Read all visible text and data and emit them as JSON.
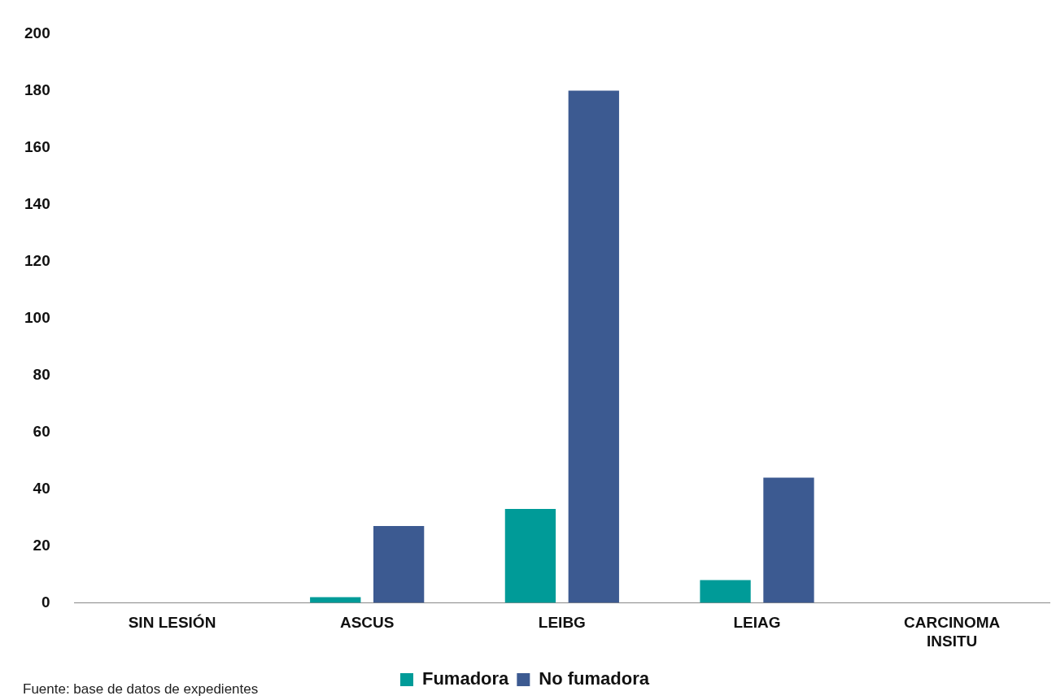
{
  "chart_data": {
    "type": "bar",
    "categories": [
      "SIN LESIÓN",
      "ASCUS",
      "LEIBG",
      "LEIAG",
      "CARCINOMA INSITU"
    ],
    "series": [
      {
        "name": "Fumadora",
        "color": "#009b98",
        "values": [
          0,
          2,
          33,
          8,
          0
        ]
      },
      {
        "name": "No fumadora",
        "color": "#3c5a91",
        "values": [
          0,
          27,
          180,
          44,
          0
        ]
      }
    ],
    "ylim": [
      0,
      200
    ],
    "yticks": [
      0,
      20,
      40,
      60,
      80,
      100,
      120,
      140,
      160,
      180,
      200
    ],
    "grid": false,
    "legend": "bottom",
    "annotations": [
      "Fuente: base de datos de expedientes"
    ]
  }
}
